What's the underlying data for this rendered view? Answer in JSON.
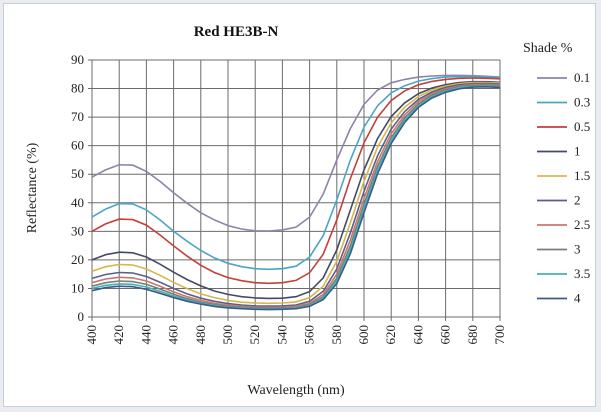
{
  "chart_data": {
    "type": "line",
    "title": "Red HE3B-N",
    "xlabel": "Wavelength  (nm)",
    "ylabel": "Reflectance  (%)",
    "xlim": [
      400,
      700
    ],
    "ylim": [
      0,
      90
    ],
    "x_ticks": [
      400,
      420,
      440,
      460,
      480,
      500,
      520,
      540,
      560,
      580,
      600,
      620,
      640,
      660,
      680,
      700
    ],
    "y_ticks": [
      0,
      10,
      20,
      30,
      40,
      50,
      60,
      70,
      80,
      90
    ],
    "grid": true,
    "legend_title": "Shade %",
    "legend_position": "right",
    "x": [
      400,
      410,
      420,
      430,
      440,
      450,
      460,
      470,
      480,
      490,
      500,
      510,
      520,
      530,
      540,
      550,
      560,
      570,
      580,
      590,
      600,
      610,
      620,
      630,
      640,
      650,
      660,
      670,
      680,
      690,
      700
    ],
    "series": [
      {
        "name": "0.1",
        "color": "#8e83a8",
        "values": [
          49,
          51.5,
          53.3,
          53.2,
          51,
          47.5,
          43.5,
          39.8,
          36.5,
          34,
          32,
          30.8,
          30.2,
          30.1,
          30.5,
          31.5,
          35,
          43,
          55,
          66,
          74.5,
          79.5,
          82,
          83.2,
          84,
          84.4,
          84.6,
          84.6,
          84.5,
          84.3,
          84
        ]
      },
      {
        "name": "0.3",
        "color": "#4aa6c3",
        "values": [
          35,
          37.8,
          39.7,
          39.6,
          37.5,
          34,
          30,
          26.5,
          23.3,
          20.7,
          18.8,
          17.6,
          16.9,
          16.7,
          16.9,
          17.8,
          21,
          28.5,
          41,
          55,
          66.5,
          74,
          78.5,
          81,
          82.6,
          83.5,
          84,
          84.2,
          84.2,
          84,
          83.8
        ]
      },
      {
        "name": "0.5",
        "color": "#c43f3a",
        "values": [
          30,
          32.6,
          34.3,
          34.1,
          32.2,
          28.7,
          24.9,
          21.3,
          18.1,
          15.6,
          13.8,
          12.7,
          12,
          11.8,
          12,
          12.8,
          15.5,
          22,
          34,
          48.5,
          61,
          70,
          75.8,
          79.2,
          81.3,
          82.5,
          83.2,
          83.6,
          83.7,
          83.6,
          83.4
        ]
      },
      {
        "name": "1",
        "color": "#444a63",
        "values": [
          20,
          21.8,
          22.7,
          22.5,
          21,
          18.5,
          15.7,
          13.1,
          10.9,
          9.1,
          7.9,
          7.1,
          6.7,
          6.5,
          6.6,
          7.1,
          8.9,
          13.7,
          23.5,
          37.5,
          51.5,
          62.5,
          70.2,
          75,
          78.2,
          80.2,
          81.4,
          82.1,
          82.4,
          82.4,
          82.2
        ]
      },
      {
        "name": "1.5",
        "color": "#d7b64a",
        "values": [
          16,
          17.6,
          18.4,
          18.2,
          16.8,
          14.6,
          12.1,
          9.9,
          8.1,
          6.8,
          5.8,
          5.2,
          4.9,
          4.8,
          4.9,
          5.3,
          6.8,
          10.8,
          19.5,
          33,
          47.5,
          59.5,
          68,
          73.5,
          77.2,
          79.5,
          80.9,
          81.7,
          82.1,
          82.1,
          81.9
        ]
      },
      {
        "name": "2",
        "color": "#5c5e8c",
        "values": [
          13.5,
          14.9,
          15.6,
          15.4,
          14.2,
          12.2,
          10,
          8.1,
          6.6,
          5.5,
          4.7,
          4.2,
          3.9,
          3.8,
          3.9,
          4.2,
          5.5,
          9,
          16.8,
          29.5,
          44,
          56.5,
          65.8,
          72,
          76.2,
          78.8,
          80.4,
          81.3,
          81.7,
          81.8,
          81.6
        ]
      },
      {
        "name": "2.5",
        "color": "#c4786e",
        "values": [
          12,
          13.3,
          13.9,
          13.7,
          12.6,
          10.8,
          8.8,
          7.1,
          5.8,
          4.8,
          4.1,
          3.7,
          3.4,
          3.3,
          3.4,
          3.7,
          4.8,
          7.9,
          15,
          27,
          41.5,
          54.5,
          64.2,
          70.8,
          75.4,
          78.2,
          79.9,
          80.9,
          81.4,
          81.5,
          81.3
        ]
      },
      {
        "name": "3",
        "color": "#7c7c7c",
        "values": [
          10.8,
          12,
          12.6,
          12.4,
          11.4,
          9.8,
          8,
          6.4,
          5.2,
          4.3,
          3.7,
          3.3,
          3.1,
          3,
          3.1,
          3.3,
          4.3,
          7.1,
          13.6,
          25,
          39.5,
          52.8,
          62.8,
          69.8,
          74.6,
          77.7,
          79.5,
          80.6,
          81.1,
          81.2,
          81
        ]
      },
      {
        "name": "3.5",
        "color": "#3fb6ad",
        "values": [
          10,
          11.1,
          11.6,
          11.4,
          10.5,
          9,
          7.3,
          5.9,
          4.8,
          4,
          3.4,
          3.1,
          2.9,
          2.8,
          2.9,
          3.1,
          4,
          6.6,
          12.6,
          23.6,
          38,
          51.5,
          61.8,
          69,
          74,
          77.2,
          79.1,
          80.3,
          80.8,
          80.9,
          80.7
        ]
      },
      {
        "name": "4",
        "color": "#3e5a88",
        "values": [
          9.2,
          10.3,
          10.8,
          10.6,
          9.7,
          8.3,
          6.8,
          5.5,
          4.5,
          3.7,
          3.2,
          2.9,
          2.7,
          2.6,
          2.7,
          2.9,
          3.7,
          6.1,
          11.7,
          22.2,
          36.5,
          50.2,
          60.8,
          68.2,
          73.4,
          76.7,
          78.7,
          79.9,
          80.5,
          80.6,
          80.4
        ]
      }
    ]
  }
}
